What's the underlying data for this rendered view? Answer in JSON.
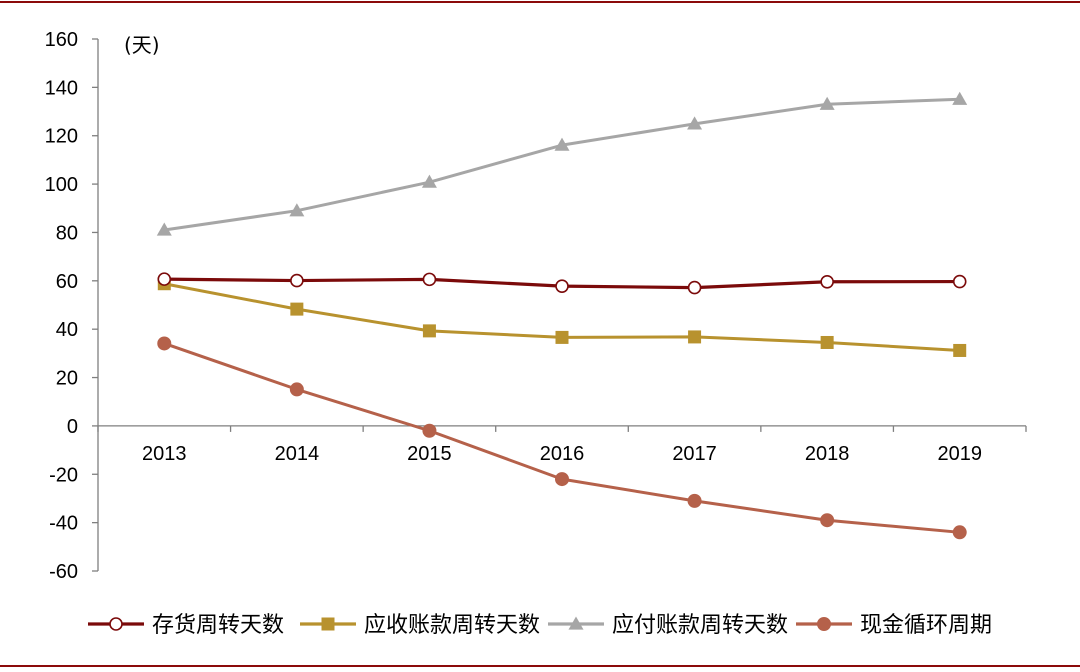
{
  "chart_data": {
    "type": "line",
    "title": "",
    "xlabel": "",
    "ylabel": "",
    "unit_label": "(天)",
    "categories": [
      "2013",
      "2014",
      "2015",
      "2016",
      "2017",
      "2018",
      "2019"
    ],
    "ylim": [
      -60,
      160
    ],
    "yticks": [
      -60,
      -40,
      -20,
      0,
      20,
      40,
      60,
      80,
      100,
      120,
      140,
      160
    ],
    "grid": false,
    "legend_position": "bottom",
    "series": [
      {
        "name": "存货周转天数",
        "color": "#7B0A0A",
        "marker": "open-circle",
        "values": [
          60.7,
          60.1,
          60.6,
          57.8,
          57.2,
          59.6,
          59.7
        ]
      },
      {
        "name": "应收账款周转天数",
        "color": "#B8922E",
        "marker": "square",
        "values": [
          58.8,
          48.3,
          39.3,
          36.6,
          36.8,
          34.5,
          31.2
        ]
      },
      {
        "name": "应付账款周转天数",
        "color": "#A6A6A6",
        "marker": "triangle",
        "values": [
          81.0,
          89.0,
          100.8,
          116.1,
          124.9,
          133.0,
          135.1
        ]
      },
      {
        "name": "现金循环周期",
        "color": "#B5614A",
        "marker": "filled-circle",
        "values": [
          34.1,
          15.1,
          -2.0,
          -22.0,
          -31.0,
          -39.0,
          -44.0
        ]
      }
    ]
  },
  "decor": {
    "rule_color": "#8B0A0A"
  }
}
